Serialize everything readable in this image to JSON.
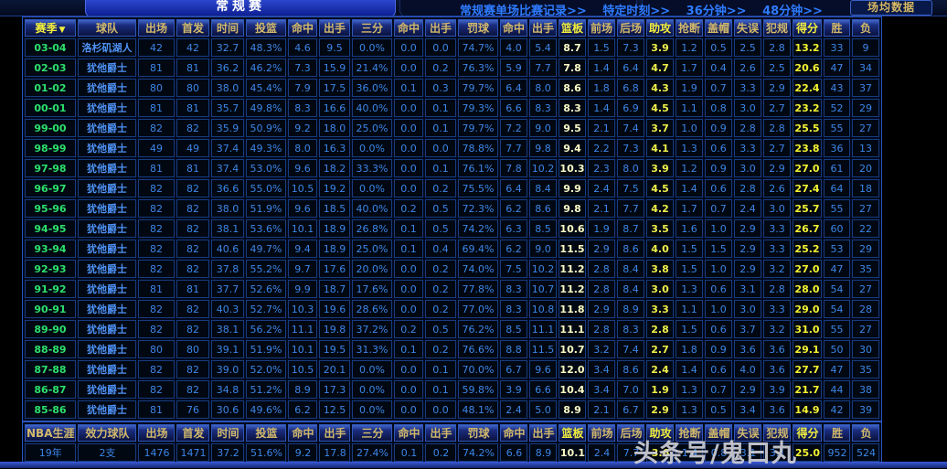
{
  "topbar": {
    "tab_regular_season": "常规赛",
    "links": [
      "常规赛单场比赛记录>>",
      "特定时刻>>",
      "36分钟>>",
      "48分钟>>"
    ],
    "avg_button": "场均数据"
  },
  "table": {
    "sort_icon": "▼",
    "columns": [
      "赛季",
      "球队",
      "出场",
      "首发",
      "时间",
      "投篮",
      "命中",
      "出手",
      "三分",
      "命中",
      "出手",
      "罚球",
      "命中",
      "出手",
      "篮板",
      "前场",
      "后场",
      "助攻",
      "抢断",
      "盖帽",
      "失误",
      "犯规",
      "得分",
      "胜",
      "负"
    ],
    "rows": [
      [
        "03-04",
        "洛杉矶湖人",
        "42",
        "42",
        "32.7",
        "48.3%",
        "4.6",
        "9.5",
        "0.0%",
        "0.0",
        "0.0",
        "74.7%",
        "4.0",
        "5.4",
        "8.7",
        "1.5",
        "7.3",
        "3.9",
        "1.2",
        "0.5",
        "2.5",
        "2.8",
        "13.2",
        "33",
        "9"
      ],
      [
        "02-03",
        "犹他爵士",
        "81",
        "81",
        "36.2",
        "46.2%",
        "7.3",
        "15.9",
        "21.4%",
        "0.0",
        "0.2",
        "76.3%",
        "5.9",
        "7.7",
        "7.8",
        "1.4",
        "6.4",
        "4.7",
        "1.7",
        "0.4",
        "2.6",
        "2.5",
        "20.6",
        "47",
        "34"
      ],
      [
        "01-02",
        "犹他爵士",
        "80",
        "80",
        "38.0",
        "45.4%",
        "7.9",
        "17.5",
        "36.0%",
        "0.1",
        "0.3",
        "79.7%",
        "6.4",
        "8.0",
        "8.6",
        "1.8",
        "6.8",
        "4.3",
        "1.9",
        "0.7",
        "3.3",
        "2.9",
        "22.4",
        "43",
        "37"
      ],
      [
        "00-01",
        "犹他爵士",
        "81",
        "81",
        "35.7",
        "49.8%",
        "8.3",
        "16.6",
        "40.0%",
        "0.0",
        "0.1",
        "79.3%",
        "6.6",
        "8.3",
        "8.3",
        "1.4",
        "6.9",
        "4.5",
        "1.1",
        "0.8",
        "3.0",
        "2.7",
        "23.2",
        "52",
        "29"
      ],
      [
        "99-00",
        "犹他爵士",
        "82",
        "82",
        "35.9",
        "50.9%",
        "9.2",
        "18.0",
        "25.0%",
        "0.0",
        "0.1",
        "79.7%",
        "7.2",
        "9.0",
        "9.5",
        "2.1",
        "7.4",
        "3.7",
        "1.0",
        "0.9",
        "2.8",
        "2.8",
        "25.5",
        "55",
        "27"
      ],
      [
        "98-99",
        "犹他爵士",
        "49",
        "49",
        "37.4",
        "49.3%",
        "8.0",
        "16.3",
        "0.0%",
        "0.0",
        "0.0",
        "78.8%",
        "7.7",
        "9.8",
        "9.4",
        "2.2",
        "7.3",
        "4.1",
        "1.3",
        "0.6",
        "3.3",
        "2.7",
        "23.8",
        "36",
        "13"
      ],
      [
        "97-98",
        "犹他爵士",
        "81",
        "81",
        "37.4",
        "53.0%",
        "9.6",
        "18.2",
        "33.3%",
        "0.0",
        "0.1",
        "76.1%",
        "7.8",
        "10.2",
        "10.3",
        "2.3",
        "8.0",
        "3.9",
        "1.2",
        "0.9",
        "3.0",
        "2.9",
        "27.0",
        "61",
        "20"
      ],
      [
        "96-97",
        "犹他爵士",
        "82",
        "82",
        "36.6",
        "55.0%",
        "10.5",
        "19.2",
        "0.0%",
        "0.0",
        "0.2",
        "75.5%",
        "6.4",
        "8.4",
        "9.9",
        "2.4",
        "7.5",
        "4.5",
        "1.4",
        "0.6",
        "2.8",
        "2.6",
        "27.4",
        "64",
        "18"
      ],
      [
        "95-96",
        "犹他爵士",
        "82",
        "82",
        "38.0",
        "51.9%",
        "9.6",
        "18.5",
        "40.0%",
        "0.2",
        "0.5",
        "72.3%",
        "6.2",
        "8.6",
        "9.8",
        "2.1",
        "7.7",
        "4.2",
        "1.7",
        "0.7",
        "2.4",
        "3.0",
        "25.7",
        "55",
        "27"
      ],
      [
        "94-95",
        "犹他爵士",
        "82",
        "82",
        "38.1",
        "53.6%",
        "10.1",
        "18.9",
        "26.8%",
        "0.1",
        "0.5",
        "74.2%",
        "6.3",
        "8.5",
        "10.6",
        "1.9",
        "8.7",
        "3.5",
        "1.6",
        "1.0",
        "2.9",
        "3.3",
        "26.7",
        "60",
        "22"
      ],
      [
        "93-94",
        "犹他爵士",
        "82",
        "82",
        "40.6",
        "49.7%",
        "9.4",
        "18.9",
        "25.0%",
        "0.1",
        "0.4",
        "69.4%",
        "6.2",
        "9.0",
        "11.5",
        "2.9",
        "8.6",
        "4.0",
        "1.5",
        "1.5",
        "2.9",
        "3.3",
        "25.2",
        "53",
        "29"
      ],
      [
        "92-93",
        "犹他爵士",
        "82",
        "82",
        "37.8",
        "55.2%",
        "9.7",
        "17.6",
        "20.0%",
        "0.0",
        "0.2",
        "74.0%",
        "7.5",
        "10.2",
        "11.2",
        "2.8",
        "8.4",
        "3.8",
        "1.5",
        "1.0",
        "2.9",
        "3.2",
        "27.0",
        "47",
        "35"
      ],
      [
        "91-92",
        "犹他爵士",
        "81",
        "81",
        "37.7",
        "52.6%",
        "9.9",
        "18.7",
        "17.6%",
        "0.0",
        "0.2",
        "77.8%",
        "8.3",
        "10.7",
        "11.2",
        "2.8",
        "8.4",
        "3.0",
        "1.3",
        "0.6",
        "3.1",
        "2.8",
        "28.0",
        "54",
        "27"
      ],
      [
        "90-91",
        "犹他爵士",
        "82",
        "82",
        "40.3",
        "52.7%",
        "10.3",
        "19.6",
        "28.6%",
        "0.0",
        "0.2",
        "77.0%",
        "8.3",
        "10.8",
        "11.8",
        "2.9",
        "8.9",
        "3.3",
        "1.1",
        "1.0",
        "3.0",
        "3.3",
        "29.0",
        "54",
        "28"
      ],
      [
        "89-90",
        "犹他爵士",
        "82",
        "82",
        "38.1",
        "56.2%",
        "11.1",
        "19.8",
        "37.2%",
        "0.2",
        "0.5",
        "76.2%",
        "8.5",
        "11.1",
        "11.1",
        "2.8",
        "8.3",
        "2.8",
        "1.5",
        "0.6",
        "3.7",
        "3.2",
        "31.0",
        "55",
        "27"
      ],
      [
        "88-89",
        "犹他爵士",
        "80",
        "80",
        "39.1",
        "51.9%",
        "10.1",
        "19.5",
        "31.3%",
        "0.1",
        "0.2",
        "76.6%",
        "8.8",
        "11.5",
        "10.7",
        "3.2",
        "7.4",
        "2.7",
        "1.8",
        "0.9",
        "3.6",
        "3.6",
        "29.1",
        "50",
        "30"
      ],
      [
        "87-88",
        "犹他爵士",
        "82",
        "82",
        "39.0",
        "52.0%",
        "10.5",
        "20.1",
        "0.0%",
        "0.0",
        "0.1",
        "70.0%",
        "6.7",
        "9.6",
        "12.0",
        "3.4",
        "8.6",
        "2.4",
        "1.4",
        "0.6",
        "4.0",
        "3.6",
        "27.7",
        "47",
        "35"
      ],
      [
        "86-87",
        "犹他爵士",
        "82",
        "82",
        "34.8",
        "51.2%",
        "8.9",
        "17.3",
        "0.0%",
        "0.0",
        "0.1",
        "59.8%",
        "3.9",
        "6.6",
        "10.4",
        "3.4",
        "7.0",
        "1.9",
        "1.3",
        "0.7",
        "2.9",
        "3.9",
        "21.7",
        "44",
        "38"
      ],
      [
        "85-86",
        "犹他爵士",
        "81",
        "76",
        "30.6",
        "49.6%",
        "6.2",
        "12.5",
        "0.0%",
        "0.0",
        "0.0",
        "48.1%",
        "2.4",
        "5.0",
        "8.9",
        "2.1",
        "6.7",
        "2.9",
        "1.3",
        "0.5",
        "3.4",
        "3.6",
        "14.9",
        "42",
        "39"
      ]
    ]
  },
  "career": {
    "columns": [
      "NBA生涯",
      "效力球队",
      "出场",
      "首发",
      "时间",
      "投篮",
      "命中",
      "出手",
      "三分",
      "命中",
      "出手",
      "罚球",
      "命中",
      "出手",
      "篮板",
      "前场",
      "后场",
      "助攻",
      "抢断",
      "盖帽",
      "失误",
      "犯规",
      "得分",
      "胜",
      "负"
    ],
    "row": [
      "19年",
      "2支",
      "1476",
      "1471",
      "37.2",
      "51.6%",
      "9.2",
      "17.8",
      "27.4%",
      "0.1",
      "0.2",
      "74.2%",
      "6.6",
      "8.9",
      "10.1",
      "2.4",
      "7.7",
      "3.6",
      "1.4",
      "0.8",
      "3.1",
      "3.1",
      "25.0",
      "952",
      "524"
    ]
  },
  "watermark": "头条号/鬼曰丸",
  "colors": {
    "accent_blue": "#2e7bff",
    "header_gold": "#d2b96a",
    "highlight_yellow": "#f2ee3c",
    "season_green": "#2de06c",
    "value_blue": "#3d85e6",
    "team_blue": "#4f92f5"
  }
}
